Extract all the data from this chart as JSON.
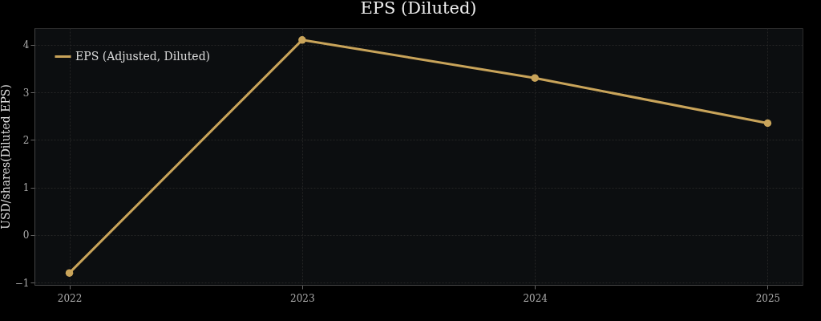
{
  "chart_data": {
    "type": "line",
    "title": "EPS (Diluted)",
    "ylabel": "USD/shares(Diluted EPS)",
    "x": [
      2022,
      2023,
      2024,
      2025
    ],
    "series": [
      {
        "name": "EPS (Adjusted, Diluted)",
        "color": "#c9a45a",
        "values": [
          -0.8,
          4.1,
          3.3,
          2.35
        ]
      }
    ],
    "xlim": [
      2021.85,
      2025.15
    ],
    "xticks": [
      2022,
      2023,
      2024,
      2025
    ],
    "ylim": [
      -1.05,
      4.35
    ],
    "yticks": [
      -1,
      0,
      1,
      2,
      3,
      4
    ],
    "grid": true,
    "legend": "top left",
    "marker": "circle",
    "line_style": "solid"
  }
}
